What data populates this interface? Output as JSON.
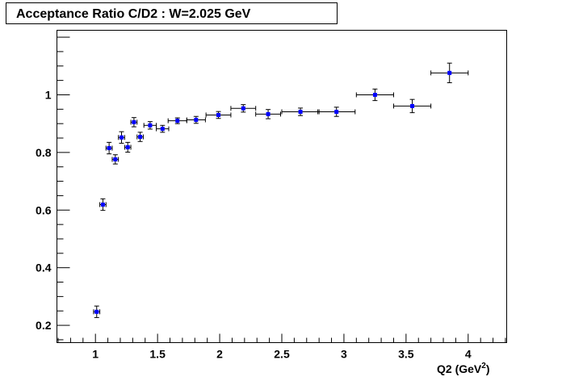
{
  "chart_data": {
    "type": "scatter",
    "title": "Acceptance Ratio C/D2 : W=2.025 GeV",
    "xlabel": "Q2 (GeV",
    "xlabel_sup": "2",
    "xlabel_close": ")",
    "ylabel": "",
    "xlim": [
      0.69,
      4.31
    ],
    "ylim": [
      0.14,
      1.224
    ],
    "xticks": [
      1,
      1.5,
      2,
      2.5,
      3,
      3.5,
      4
    ],
    "xtick_labels": [
      "1",
      "1.5",
      "2",
      "2.5",
      "3",
      "3.5",
      "4"
    ],
    "yticks": [
      0.2,
      0.4,
      0.6,
      0.8,
      1
    ],
    "ytick_labels": [
      "0.2",
      "0.4",
      "0.6",
      "0.8",
      "1"
    ],
    "grid": false,
    "marker_color": "#0000ff",
    "points": [
      {
        "x": 1.01,
        "y": 0.247,
        "xerr": 0.025,
        "yerr": 0.02
      },
      {
        "x": 1.06,
        "y": 0.619,
        "xerr": 0.025,
        "yerr": 0.02
      },
      {
        "x": 1.11,
        "y": 0.815,
        "xerr": 0.025,
        "yerr": 0.02
      },
      {
        "x": 1.16,
        "y": 0.776,
        "xerr": 0.025,
        "yerr": 0.016
      },
      {
        "x": 1.21,
        "y": 0.852,
        "xerr": 0.025,
        "yerr": 0.02
      },
      {
        "x": 1.26,
        "y": 0.818,
        "xerr": 0.025,
        "yerr": 0.017
      },
      {
        "x": 1.31,
        "y": 0.905,
        "xerr": 0.025,
        "yerr": 0.016
      },
      {
        "x": 1.36,
        "y": 0.854,
        "xerr": 0.025,
        "yerr": 0.016
      },
      {
        "x": 1.44,
        "y": 0.894,
        "xerr": 0.05,
        "yerr": 0.013
      },
      {
        "x": 1.54,
        "y": 0.882,
        "xerr": 0.05,
        "yerr": 0.012
      },
      {
        "x": 1.66,
        "y": 0.91,
        "xerr": 0.075,
        "yerr": 0.01
      },
      {
        "x": 1.81,
        "y": 0.913,
        "xerr": 0.075,
        "yerr": 0.012
      },
      {
        "x": 1.99,
        "y": 0.93,
        "xerr": 0.1,
        "yerr": 0.012
      },
      {
        "x": 2.19,
        "y": 0.953,
        "xerr": 0.1,
        "yerr": 0.013
      },
      {
        "x": 2.39,
        "y": 0.933,
        "xerr": 0.1,
        "yerr": 0.016
      },
      {
        "x": 2.65,
        "y": 0.941,
        "xerr": 0.15,
        "yerr": 0.013
      },
      {
        "x": 2.94,
        "y": 0.941,
        "xerr": 0.15,
        "yerr": 0.016
      },
      {
        "x": 3.25,
        "y": 1.0,
        "xerr": 0.15,
        "yerr": 0.02
      },
      {
        "x": 3.55,
        "y": 0.961,
        "xerr": 0.15,
        "yerr": 0.023
      },
      {
        "x": 3.85,
        "y": 1.076,
        "xerr": 0.15,
        "yerr": 0.034
      }
    ]
  }
}
